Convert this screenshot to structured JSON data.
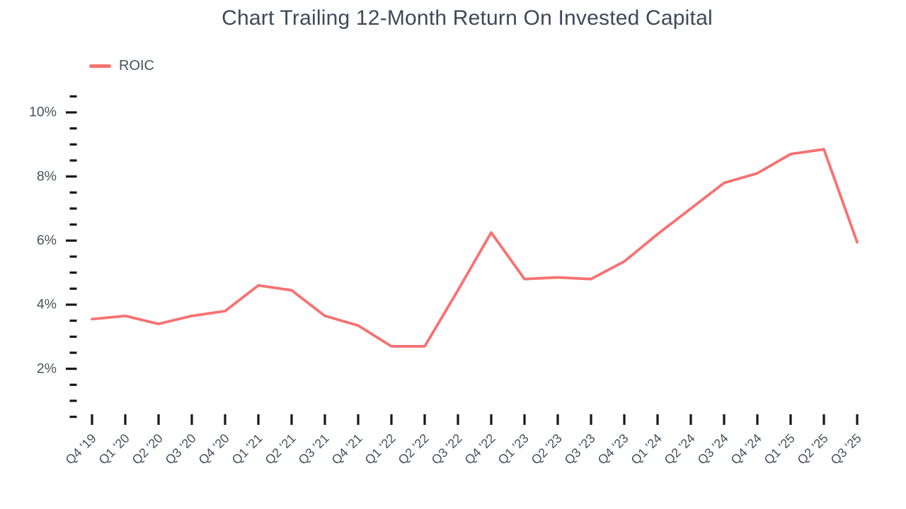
{
  "page": {
    "title": "Chart Trailing 12-Month Return On Invested Capital"
  },
  "legend": {
    "label": "ROIC"
  },
  "colors": {
    "line": "#F87171",
    "title_text": "#3E4956",
    "axis_text": "#47525F",
    "tick": "#15171A",
    "background": "#FFFFFF"
  },
  "chart_data": {
    "type": "line",
    "title": "Chart Trailing 12-Month Return On Invested Capital",
    "categories": [
      "Q4 '19",
      "Q1 '20",
      "Q2 '20",
      "Q3 '20",
      "Q4 '20",
      "Q1 '21",
      "Q2 '21",
      "Q3 '21",
      "Q4 '21",
      "Q1 '22",
      "Q2 '22",
      "Q3 '22",
      "Q4 '22",
      "Q1 '23",
      "Q2 '23",
      "Q3 '23",
      "Q4 '23",
      "Q1 '24",
      "Q2 '24",
      "Q3 '24",
      "Q4 '24",
      "Q1 '25",
      "Q2 '25",
      "Q3 '25"
    ],
    "series": [
      {
        "name": "ROIC",
        "values": [
          3.55,
          3.65,
          3.4,
          3.65,
          3.8,
          4.6,
          4.45,
          3.65,
          3.35,
          2.7,
          2.7,
          4.45,
          6.25,
          4.8,
          4.85,
          4.8,
          5.35,
          6.2,
          7.0,
          7.8,
          8.1,
          8.7,
          8.85,
          5.95
        ]
      }
    ],
    "xlabel": "",
    "ylabel": "",
    "y_unit": "%",
    "ylim": [
      0.5,
      10.5
    ],
    "yticks_labeled": [
      2,
      4,
      6,
      8,
      10
    ],
    "ytick_minor_step": 0.5,
    "grid": false,
    "markers": false,
    "legend_position": "top-left"
  }
}
